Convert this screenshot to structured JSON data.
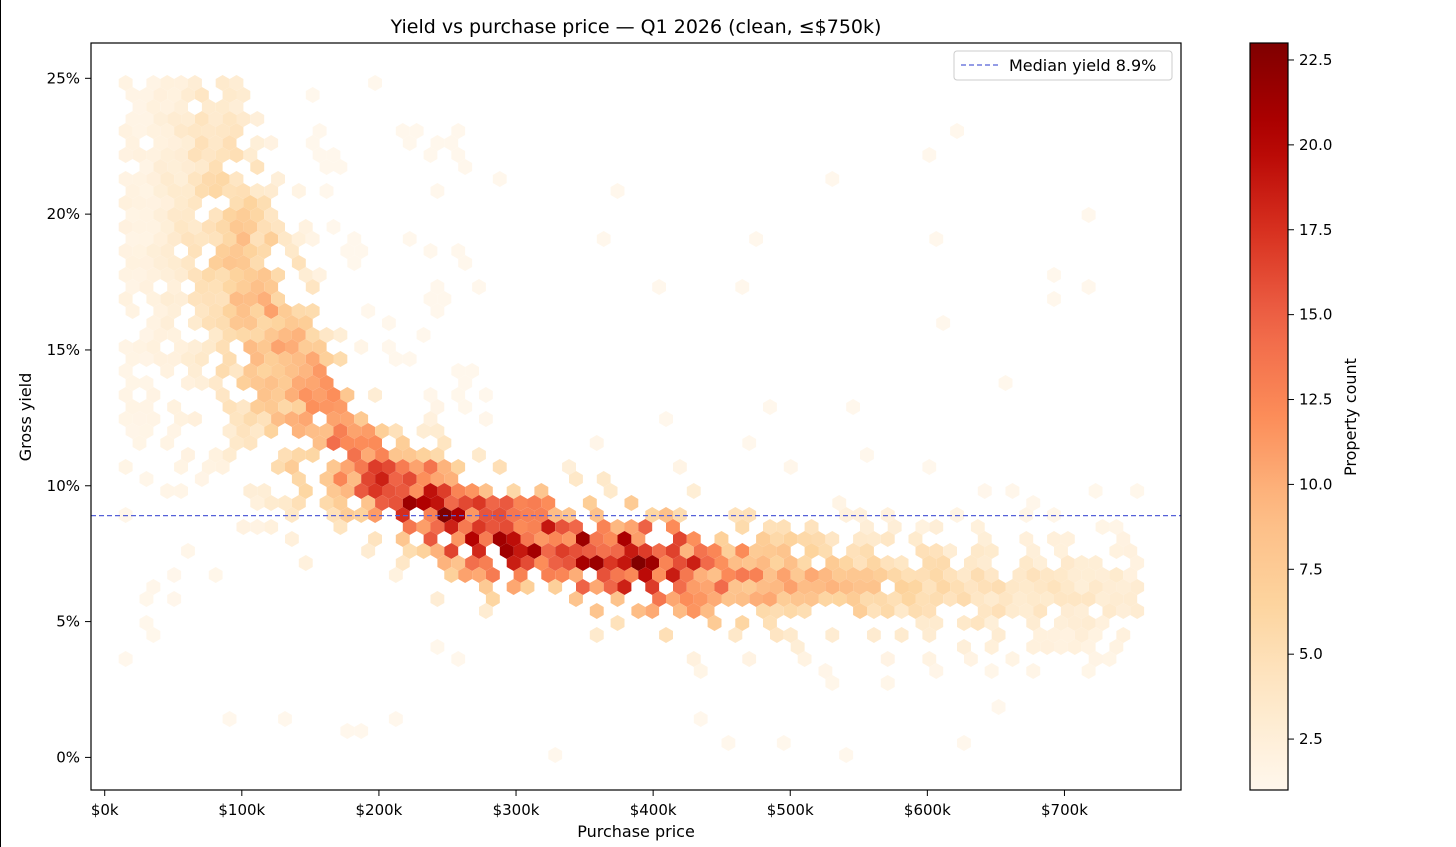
{
  "chart_data": {
    "type": "heatmap",
    "subtype": "hexbin",
    "title": "Yield vs purchase price — Q1 2026 (clean, ≤$750k)",
    "xlabel": "Purchase price",
    "ylabel": "Gross yield",
    "xlim": [
      -10000,
      785000
    ],
    "ylim": [
      -1.2,
      26.3
    ],
    "x_ticks": [
      {
        "value": 0,
        "label": "$0k"
      },
      {
        "value": 100000,
        "label": "$100k"
      },
      {
        "value": 200000,
        "label": "$200k"
      },
      {
        "value": 300000,
        "label": "$300k"
      },
      {
        "value": 400000,
        "label": "$400k"
      },
      {
        "value": 500000,
        "label": "$500k"
      },
      {
        "value": 600000,
        "label": "$600k"
      },
      {
        "value": 700000,
        "label": "$700k"
      }
    ],
    "y_ticks": [
      {
        "value": 0,
        "label": "0%"
      },
      {
        "value": 5,
        "label": "5%"
      },
      {
        "value": 10,
        "label": "10%"
      },
      {
        "value": 15,
        "label": "15%"
      },
      {
        "value": 20,
        "label": "20%"
      },
      {
        "value": 25,
        "label": "25%"
      }
    ],
    "grid": false,
    "colormap": "OrRd",
    "colorbar": {
      "label": "Property count",
      "range": [
        1,
        23
      ],
      "ticks": [
        {
          "value": 2.5,
          "label": "2.5"
        },
        {
          "value": 5.0,
          "label": "5.0"
        },
        {
          "value": 7.5,
          "label": "7.5"
        },
        {
          "value": 10.0,
          "label": "10.0"
        },
        {
          "value": 12.5,
          "label": "12.5"
        },
        {
          "value": 15.0,
          "label": "15.0"
        },
        {
          "value": 17.5,
          "label": "17.5"
        },
        {
          "value": 20.0,
          "label": "20.0"
        },
        {
          "value": 22.5,
          "label": "22.5"
        }
      ]
    },
    "median_line": {
      "value": 8.9,
      "label": "Median yield 8.9%",
      "color": "#5560d8",
      "style": "dashed"
    },
    "legend_position": "top-right",
    "density_ridge": [
      {
        "price": 30000,
        "yield": 19.5,
        "count": 2
      },
      {
        "price": 60000,
        "yield": 20.0,
        "count": 4
      },
      {
        "price": 90000,
        "yield": 18.5,
        "count": 8
      },
      {
        "price": 120000,
        "yield": 15.5,
        "count": 10
      },
      {
        "price": 150000,
        "yield": 13.0,
        "count": 12
      },
      {
        "price": 180000,
        "yield": 11.0,
        "count": 15
      },
      {
        "price": 210000,
        "yield": 9.8,
        "count": 17
      },
      {
        "price": 240000,
        "yield": 9.1,
        "count": 22
      },
      {
        "price": 270000,
        "yield": 8.3,
        "count": 21
      },
      {
        "price": 300000,
        "yield": 8.0,
        "count": 20
      },
      {
        "price": 330000,
        "yield": 7.8,
        "count": 18
      },
      {
        "price": 370000,
        "yield": 7.3,
        "count": 22
      },
      {
        "price": 410000,
        "yield": 7.0,
        "count": 21
      },
      {
        "price": 450000,
        "yield": 6.8,
        "count": 14
      },
      {
        "price": 500000,
        "yield": 6.6,
        "count": 10
      },
      {
        "price": 550000,
        "yield": 6.4,
        "count": 8
      },
      {
        "price": 600000,
        "yield": 6.3,
        "count": 6
      },
      {
        "price": 650000,
        "yield": 6.2,
        "count": 5
      },
      {
        "price": 700000,
        "yield": 6.1,
        "count": 4
      },
      {
        "price": 750000,
        "yield": 6.0,
        "count": 3
      }
    ]
  }
}
